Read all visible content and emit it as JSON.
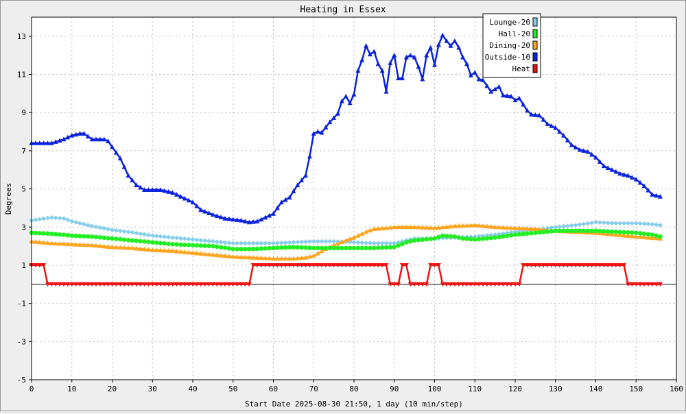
{
  "chart_data": {
    "type": "line",
    "title": "Heating in Essex",
    "xlabel": "Start Date 2025-08-30 21:50, 1 day (10 min/step)",
    "ylabel": "Degrees",
    "xlim": [
      0,
      160
    ],
    "ylim": [
      -5,
      14
    ],
    "x_ticks": [
      0,
      10,
      20,
      30,
      40,
      50,
      60,
      70,
      80,
      90,
      100,
      110,
      120,
      130,
      140,
      150,
      160
    ],
    "y_ticks": [
      -5,
      -3,
      -1,
      1,
      3,
      5,
      7,
      9,
      11,
      13
    ],
    "grid": true,
    "legend_position": "top-right",
    "series": [
      {
        "name": "Lounge-20",
        "color": "#87ceeb",
        "marker": "diamond",
        "points": [
          [
            0,
            3.35
          ],
          [
            5,
            3.5
          ],
          [
            8,
            3.45
          ],
          [
            10,
            3.3
          ],
          [
            15,
            3.05
          ],
          [
            20,
            2.85
          ],
          [
            25,
            2.72
          ],
          [
            30,
            2.55
          ],
          [
            35,
            2.45
          ],
          [
            40,
            2.35
          ],
          [
            45,
            2.25
          ],
          [
            50,
            2.15
          ],
          [
            55,
            2.15
          ],
          [
            60,
            2.15
          ],
          [
            65,
            2.2
          ],
          [
            70,
            2.25
          ],
          [
            75,
            2.25
          ],
          [
            80,
            2.2
          ],
          [
            85,
            2.15
          ],
          [
            90,
            2.15
          ],
          [
            93,
            2.3
          ],
          [
            95,
            2.4
          ],
          [
            100,
            2.4
          ],
          [
            105,
            2.45
          ],
          [
            110,
            2.5
          ],
          [
            115,
            2.6
          ],
          [
            120,
            2.75
          ],
          [
            125,
            2.85
          ],
          [
            130,
            3.0
          ],
          [
            135,
            3.1
          ],
          [
            140,
            3.25
          ],
          [
            145,
            3.2
          ],
          [
            150,
            3.2
          ],
          [
            154,
            3.15
          ],
          [
            156,
            3.1
          ]
        ]
      },
      {
        "name": "Hall-20",
        "color": "#22ee22",
        "marker": "circle",
        "points": [
          [
            0,
            2.7
          ],
          [
            5,
            2.65
          ],
          [
            10,
            2.55
          ],
          [
            15,
            2.5
          ],
          [
            20,
            2.4
          ],
          [
            25,
            2.3
          ],
          [
            30,
            2.2
          ],
          [
            35,
            2.1
          ],
          [
            40,
            2.05
          ],
          [
            45,
            2.0
          ],
          [
            50,
            1.85
          ],
          [
            55,
            1.85
          ],
          [
            60,
            1.9
          ],
          [
            65,
            1.95
          ],
          [
            70,
            1.9
          ],
          [
            75,
            1.9
          ],
          [
            80,
            1.9
          ],
          [
            85,
            1.9
          ],
          [
            90,
            1.95
          ],
          [
            93,
            2.2
          ],
          [
            95,
            2.3
          ],
          [
            100,
            2.4
          ],
          [
            102,
            2.55
          ],
          [
            105,
            2.5
          ],
          [
            107,
            2.4
          ],
          [
            110,
            2.35
          ],
          [
            115,
            2.45
          ],
          [
            120,
            2.6
          ],
          [
            125,
            2.7
          ],
          [
            130,
            2.8
          ],
          [
            135,
            2.8
          ],
          [
            140,
            2.8
          ],
          [
            145,
            2.75
          ],
          [
            150,
            2.7
          ],
          [
            154,
            2.6
          ],
          [
            156,
            2.5
          ]
        ]
      },
      {
        "name": "Dining-20",
        "color": "#ffa520",
        "marker": "triangle",
        "points": [
          [
            0,
            2.25
          ],
          [
            5,
            2.15
          ],
          [
            10,
            2.1
          ],
          [
            15,
            2.05
          ],
          [
            20,
            1.95
          ],
          [
            25,
            1.9
          ],
          [
            30,
            1.8
          ],
          [
            35,
            1.75
          ],
          [
            40,
            1.65
          ],
          [
            45,
            1.55
          ],
          [
            50,
            1.45
          ],
          [
            55,
            1.4
          ],
          [
            60,
            1.35
          ],
          [
            65,
            1.35
          ],
          [
            68,
            1.4
          ],
          [
            70,
            1.5
          ],
          [
            73,
            1.85
          ],
          [
            75,
            2.05
          ],
          [
            78,
            2.3
          ],
          [
            80,
            2.45
          ],
          [
            83,
            2.75
          ],
          [
            85,
            2.9
          ],
          [
            88,
            2.95
          ],
          [
            90,
            3.0
          ],
          [
            95,
            3.0
          ],
          [
            100,
            2.95
          ],
          [
            105,
            3.05
          ],
          [
            110,
            3.1
          ],
          [
            115,
            3.0
          ],
          [
            120,
            2.95
          ],
          [
            125,
            2.9
          ],
          [
            130,
            2.8
          ],
          [
            135,
            2.75
          ],
          [
            140,
            2.7
          ],
          [
            145,
            2.6
          ],
          [
            150,
            2.5
          ],
          [
            153,
            2.45
          ],
          [
            156,
            2.4
          ]
        ]
      },
      {
        "name": "Outside-10",
        "color": "#0a22dd",
        "marker": "triangle",
        "points": [
          [
            0,
            7.4
          ],
          [
            5,
            7.4
          ],
          [
            8,
            7.6
          ],
          [
            10,
            7.8
          ],
          [
            12,
            7.9
          ],
          [
            13,
            7.9
          ],
          [
            15,
            7.6
          ],
          [
            18,
            7.6
          ],
          [
            19,
            7.5
          ],
          [
            20,
            7.2
          ],
          [
            22,
            6.6
          ],
          [
            24,
            5.7
          ],
          [
            26,
            5.2
          ],
          [
            28,
            4.95
          ],
          [
            30,
            4.95
          ],
          [
            32,
            4.95
          ],
          [
            35,
            4.8
          ],
          [
            40,
            4.3
          ],
          [
            42,
            3.9
          ],
          [
            45,
            3.65
          ],
          [
            48,
            3.45
          ],
          [
            52,
            3.35
          ],
          [
            54,
            3.25
          ],
          [
            56,
            3.3
          ],
          [
            58,
            3.5
          ],
          [
            60,
            3.7
          ],
          [
            62,
            4.3
          ],
          [
            64,
            4.55
          ],
          [
            66,
            5.2
          ],
          [
            68,
            5.7
          ],
          [
            69,
            6.7
          ],
          [
            70,
            7.9
          ],
          [
            71,
            8.0
          ],
          [
            72,
            7.95
          ],
          [
            74,
            8.5
          ],
          [
            76,
            8.95
          ],
          [
            77,
            9.6
          ],
          [
            78,
            9.85
          ],
          [
            79,
            9.5
          ],
          [
            80,
            9.95
          ],
          [
            81,
            11.2
          ],
          [
            82,
            11.75
          ],
          [
            83,
            12.5
          ],
          [
            84,
            12.05
          ],
          [
            85,
            12.2
          ],
          [
            86,
            11.55
          ],
          [
            87,
            11.2
          ],
          [
            88,
            10.1
          ],
          [
            89,
            11.6
          ],
          [
            90,
            12.0
          ],
          [
            91,
            10.8
          ],
          [
            92,
            10.8
          ],
          [
            93,
            11.9
          ],
          [
            94,
            12.0
          ],
          [
            95,
            11.9
          ],
          [
            96,
            11.4
          ],
          [
            97,
            10.75
          ],
          [
            98,
            12.0
          ],
          [
            99,
            12.4
          ],
          [
            100,
            11.5
          ],
          [
            101,
            12.55
          ],
          [
            102,
            13.05
          ],
          [
            103,
            12.75
          ],
          [
            104,
            12.5
          ],
          [
            105,
            12.75
          ],
          [
            106,
            12.4
          ],
          [
            107,
            11.9
          ],
          [
            108,
            11.55
          ],
          [
            109,
            10.95
          ],
          [
            110,
            11.1
          ],
          [
            111,
            10.75
          ],
          [
            112,
            10.7
          ],
          [
            114,
            10.1
          ],
          [
            116,
            10.35
          ],
          [
            117,
            9.9
          ],
          [
            119,
            9.85
          ],
          [
            120,
            9.65
          ],
          [
            121,
            9.75
          ],
          [
            123,
            9.1
          ],
          [
            124,
            8.9
          ],
          [
            126,
            8.85
          ],
          [
            128,
            8.4
          ],
          [
            130,
            8.2
          ],
          [
            132,
            7.8
          ],
          [
            134,
            7.3
          ],
          [
            136,
            7.05
          ],
          [
            138,
            6.95
          ],
          [
            140,
            6.65
          ],
          [
            142,
            6.2
          ],
          [
            144,
            6.0
          ],
          [
            146,
            5.8
          ],
          [
            148,
            5.7
          ],
          [
            150,
            5.5
          ],
          [
            152,
            5.15
          ],
          [
            154,
            4.7
          ],
          [
            156,
            4.6
          ]
        ]
      },
      {
        "name": "Heat",
        "color": "#ee1111",
        "marker": "triangle-down",
        "points": [
          [
            0,
            1
          ],
          [
            3,
            1
          ],
          [
            4,
            0
          ],
          [
            54,
            0
          ],
          [
            55,
            1
          ],
          [
            88,
            1
          ],
          [
            89,
            0
          ],
          [
            91,
            0
          ],
          [
            92,
            1
          ],
          [
            93,
            1
          ],
          [
            94,
            0
          ],
          [
            98,
            0
          ],
          [
            99,
            1
          ],
          [
            101,
            1
          ],
          [
            102,
            0
          ],
          [
            121,
            0
          ],
          [
            122,
            1
          ],
          [
            147,
            1
          ],
          [
            148,
            0
          ],
          [
            156,
            0
          ]
        ]
      }
    ]
  }
}
